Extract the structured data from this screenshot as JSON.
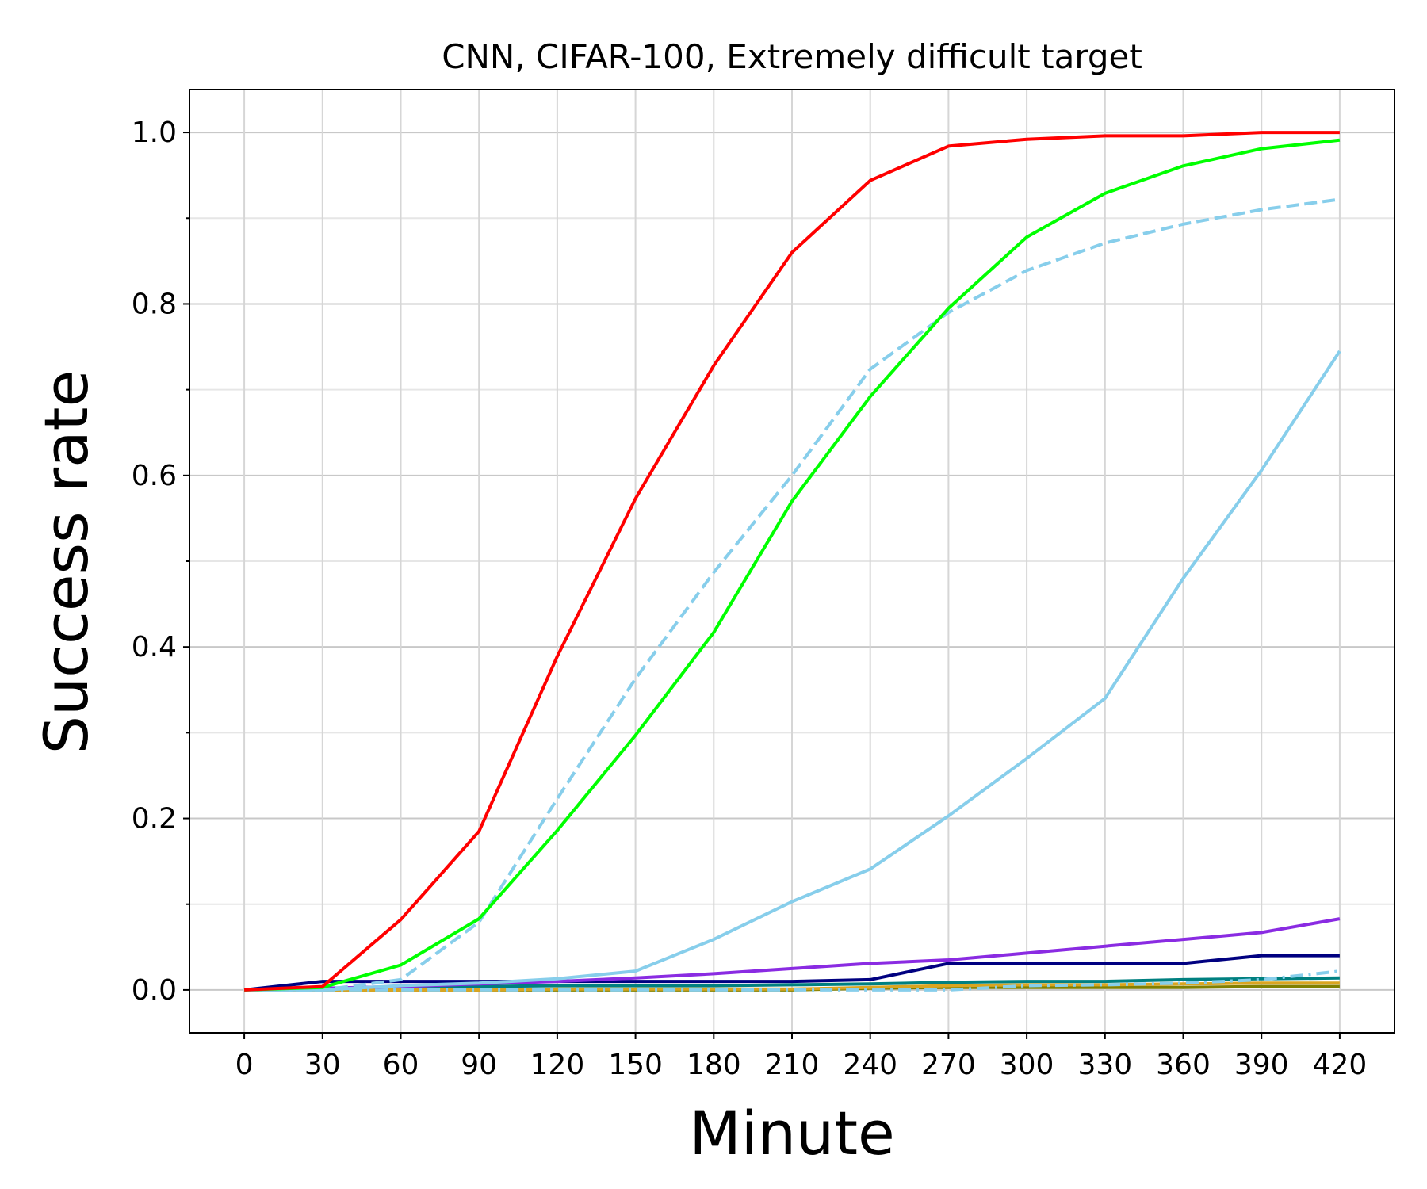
{
  "chart_data": {
    "type": "line",
    "title": "CNN, CIFAR-100, Extremely difficult target",
    "xlabel": "Minute",
    "ylabel": "Success rate",
    "x": [
      0,
      30,
      60,
      90,
      120,
      150,
      180,
      210,
      240,
      270,
      300,
      330,
      360,
      390,
      420
    ],
    "xlim": [
      -21,
      441
    ],
    "ylim": [
      -0.05,
      1.05
    ],
    "xticks": [
      0,
      30,
      60,
      90,
      120,
      150,
      180,
      210,
      240,
      270,
      300,
      330,
      360,
      390,
      420
    ],
    "yticks": [
      0.0,
      0.2,
      0.4,
      0.6,
      0.8,
      1.0
    ],
    "ytick_labels": [
      "0.0",
      "0.2",
      "0.4",
      "0.6",
      "0.8",
      "1.0"
    ],
    "yminor": [
      0.1,
      0.3,
      0.5,
      0.7,
      0.9
    ],
    "grid": true,
    "series": [
      {
        "name": "olive",
        "color": "#808000",
        "dash": "solid",
        "values": [
          0,
          0,
          0,
          0,
          0,
          0,
          0,
          0,
          0.002,
          0.003,
          0.003,
          0.003,
          0.003,
          0.004,
          0.004
        ]
      },
      {
        "name": "teal",
        "color": "#008080",
        "dash": "solid",
        "values": [
          0,
          0.002,
          0.003,
          0.004,
          0.005,
          0.005,
          0.005,
          0.006,
          0.007,
          0.009,
          0.01,
          0.01,
          0.012,
          0.013,
          0.014
        ]
      },
      {
        "name": "goldenrod",
        "color": "#DAA520",
        "dash": "solid",
        "values": [
          0,
          0,
          0,
          0,
          0.001,
          0.001,
          0.001,
          0.001,
          0.003,
          0.005,
          0.006,
          0.006,
          0.007,
          0.008,
          0.008
        ]
      },
      {
        "name": "skyblue-dashdot",
        "color": "#87CEEB",
        "dash": "dashdot",
        "values": [
          0,
          0,
          0,
          0,
          0,
          0,
          0,
          0,
          0,
          0,
          0.005,
          0.006,
          0.008,
          0.012,
          0.022
        ]
      },
      {
        "name": "navy",
        "color": "#000080",
        "dash": "solid",
        "values": [
          0,
          0.01,
          0.01,
          0.01,
          0.01,
          0.01,
          0.01,
          0.01,
          0.012,
          0.031,
          0.031,
          0.031,
          0.031,
          0.04,
          0.04
        ]
      },
      {
        "name": "blueviolet",
        "color": "#8A2BE2",
        "dash": "solid",
        "values": [
          0,
          0.002,
          0.004,
          0.007,
          0.01,
          0.014,
          0.019,
          0.025,
          0.031,
          0.035,
          0.043,
          0.051,
          0.059,
          0.067,
          0.083
        ]
      },
      {
        "name": "skyblue-solid",
        "color": "#87CEEB",
        "dash": "solid",
        "values": [
          0,
          0,
          0.005,
          0.008,
          0.013,
          0.022,
          0.059,
          0.103,
          0.141,
          0.203,
          0.27,
          0.34,
          0.48,
          0.606,
          0.745
        ]
      },
      {
        "name": "skyblue-dashed",
        "color": "#87CEEB",
        "dash": "dashed",
        "values": [
          0,
          0,
          0.012,
          0.079,
          0.223,
          0.363,
          0.487,
          0.6,
          0.724,
          0.79,
          0.839,
          0.871,
          0.893,
          0.91,
          0.922
        ]
      },
      {
        "name": "lime",
        "color": "#00FF00",
        "dash": "solid",
        "values": [
          0,
          0.003,
          0.029,
          0.083,
          0.186,
          0.297,
          0.417,
          0.57,
          0.692,
          0.795,
          0.878,
          0.929,
          0.961,
          0.981,
          0.991
        ]
      },
      {
        "name": "red",
        "color": "#FF0000",
        "dash": "solid",
        "values": [
          0,
          0.004,
          0.082,
          0.185,
          0.389,
          0.573,
          0.728,
          0.86,
          0.944,
          0.984,
          0.992,
          0.996,
          0.996,
          1.0,
          1.0
        ]
      }
    ]
  }
}
